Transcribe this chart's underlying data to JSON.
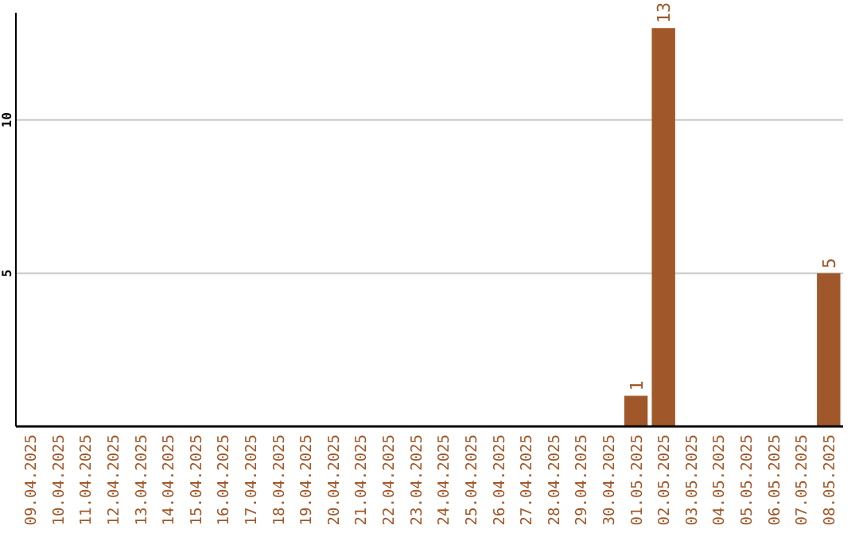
{
  "chart_data": {
    "type": "bar",
    "categories": [
      "09.04.2025",
      "10.04.2025",
      "11.04.2025",
      "12.04.2025",
      "13.04.2025",
      "14.04.2025",
      "15.04.2025",
      "16.04.2025",
      "17.04.2025",
      "18.04.2025",
      "19.04.2025",
      "20.04.2025",
      "21.04.2025",
      "22.04.2025",
      "23.04.2025",
      "24.04.2025",
      "25.04.2025",
      "26.04.2025",
      "27.04.2025",
      "28.04.2025",
      "29.04.2025",
      "30.04.2025",
      "01.05.2025",
      "02.05.2025",
      "03.05.2025",
      "04.05.2025",
      "05.05.2025",
      "06.05.2025",
      "07.05.2025",
      "08.05.2025"
    ],
    "values": [
      0,
      0,
      0,
      0,
      0,
      0,
      0,
      0,
      0,
      0,
      0,
      0,
      0,
      0,
      0,
      0,
      0,
      0,
      0,
      0,
      0,
      0,
      1,
      13,
      0,
      0,
      0,
      0,
      0,
      5
    ],
    "value_labels": [
      null,
      null,
      null,
      null,
      null,
      null,
      null,
      null,
      null,
      null,
      null,
      null,
      null,
      null,
      null,
      null,
      null,
      null,
      null,
      null,
      null,
      null,
      "1",
      "13",
      null,
      null,
      null,
      null,
      null,
      "5"
    ],
    "color": "#a0582a",
    "ylim": [
      0,
      13.5
    ],
    "yticks": [
      5,
      10
    ],
    "grid": "y"
  }
}
